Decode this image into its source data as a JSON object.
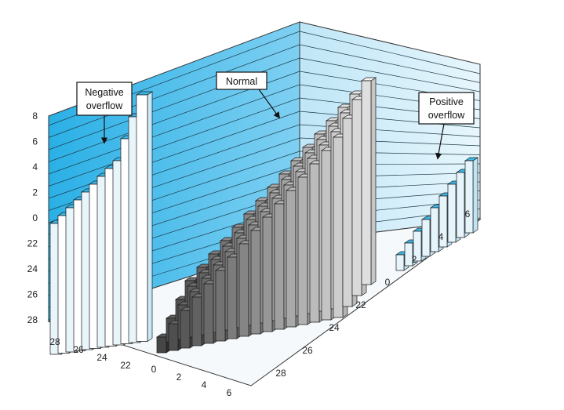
{
  "callouts": {
    "negative": [
      "Negative",
      "overflow"
    ],
    "normal": [
      "Normal"
    ],
    "positive": [
      "Positive",
      "overflow"
    ]
  },
  "axes": {
    "left_vertical_ticks": [
      "8",
      "6",
      "4",
      "2",
      "0",
      "22",
      "24",
      "26",
      "28"
    ],
    "front_left_ticks": [
      "28",
      "26",
      "24",
      "22"
    ],
    "front_right_ticks": [
      "0",
      "2",
      "4",
      "6"
    ],
    "right_depth_ticks": [
      "28",
      "26",
      "24",
      "22",
      "0",
      "2",
      "4",
      "6"
    ]
  },
  "colors": {
    "wall_blue": "#3bb8e8",
    "wall_light": "#d6eef9",
    "bar_light": "#e6f4fb",
    "bar_edge": "#1c1c1c",
    "gray_dark": "#4a4a4a",
    "gray_light": "#d8d8d8"
  }
}
